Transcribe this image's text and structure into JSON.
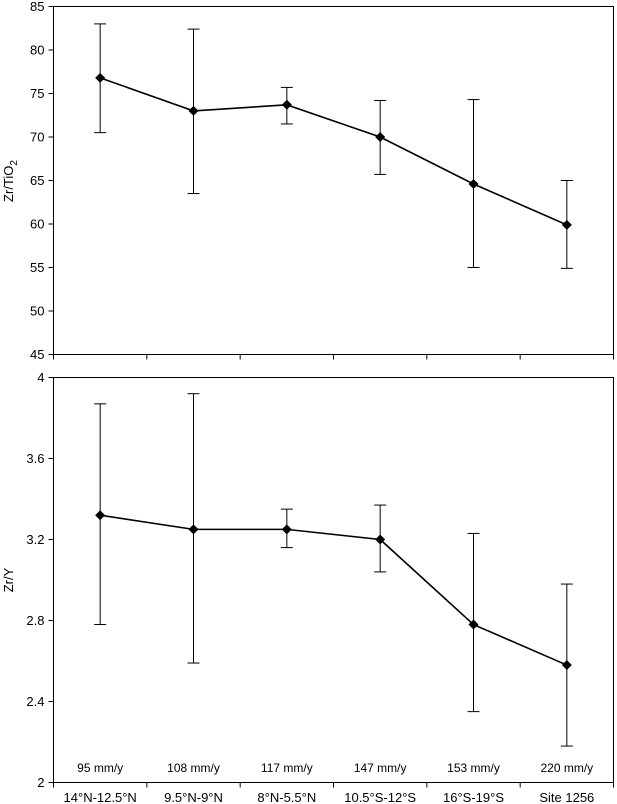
{
  "chart_data": [
    {
      "type": "line",
      "title": "",
      "ylabel": "Zr/TiO2",
      "ylabel_parts": {
        "base": "Zr/TiO",
        "subscript": "2"
      },
      "ylim": [
        45,
        85
      ],
      "yticks": [
        45,
        50,
        55,
        60,
        65,
        70,
        75,
        80,
        85
      ],
      "categories": [
        "14°N-12.5°N",
        "9.5°N-9°N",
        "8°N-5.5°N",
        "10.5°S-12°S",
        "16°S-19°S",
        "Site 1256"
      ],
      "series": [
        {
          "values": [
            76.8,
            73.0,
            73.7,
            70.0,
            64.6,
            59.9
          ],
          "err_high": [
            83.0,
            82.4,
            75.7,
            74.2,
            74.3,
            65.0
          ],
          "err_low": [
            70.5,
            63.5,
            71.5,
            65.7,
            55.0,
            54.9
          ],
          "marker": "diamond",
          "color": "#000000"
        }
      ],
      "grid": false
    },
    {
      "type": "line",
      "title": "",
      "ylabel": "Zr/Y",
      "ylim": [
        2,
        4
      ],
      "yticks": [
        "2",
        "2.4",
        "2.8",
        "3.2",
        "3.6",
        "4"
      ],
      "categories": [
        "14°N-12.5°N",
        "9.5°N-9°N",
        "8°N-5.5°N",
        "10.5°S-12°S",
        "16°S-19°S",
        "Site 1256"
      ],
      "annotations": [
        "95 mm/y",
        "108 mm/y",
        "117 mm/y",
        "147 mm/y",
        "153 mm/y",
        "220 mm/y"
      ],
      "series": [
        {
          "values": [
            3.32,
            3.25,
            3.25,
            3.2,
            2.78,
            2.58
          ],
          "err_high": [
            3.87,
            3.92,
            3.35,
            3.37,
            3.23,
            2.98
          ],
          "err_low": [
            2.78,
            2.59,
            3.16,
            3.04,
            2.35,
            2.18
          ],
          "marker": "diamond",
          "color": "#000000"
        }
      ],
      "grid": false
    }
  ]
}
